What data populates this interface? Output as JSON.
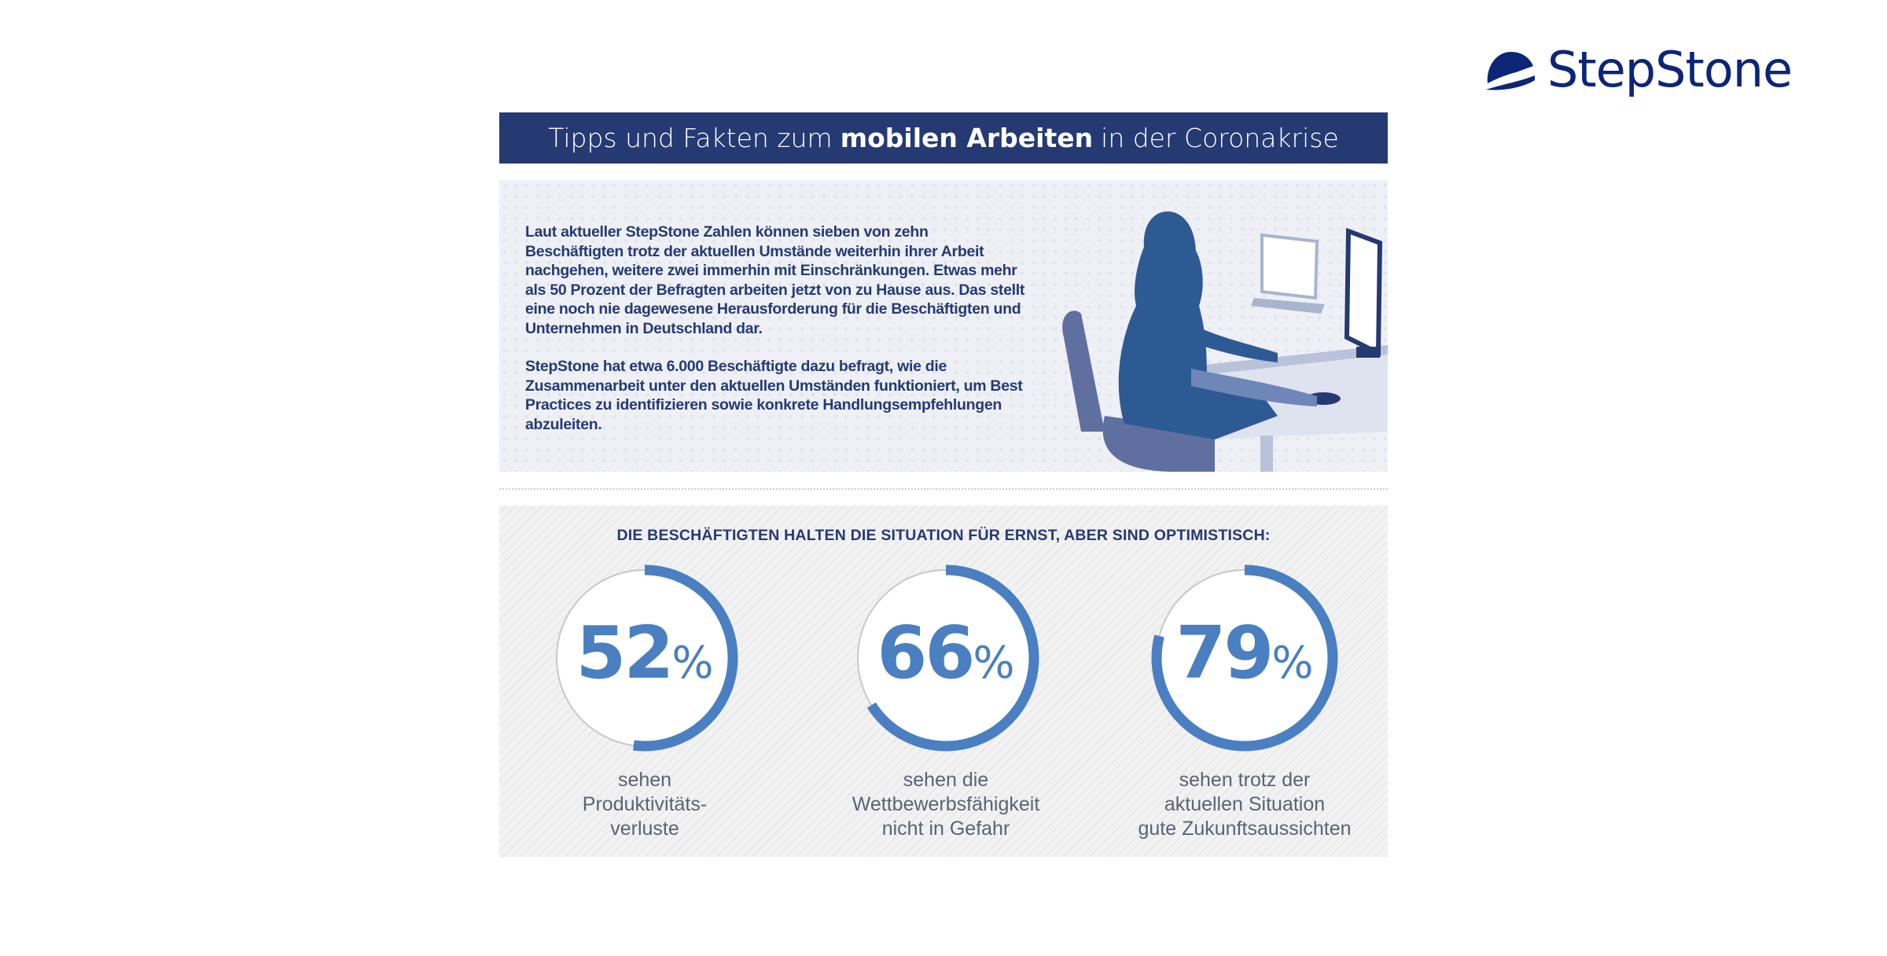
{
  "brand": {
    "name": "StepStone",
    "color": "#0c2577"
  },
  "header": {
    "pre": "Tipps und Fakten zum",
    "bold": "mobilen Arbeiten",
    "post": "in der Coronakrise"
  },
  "intro": {
    "paragraphs": [
      "Laut aktueller StepStone Zahlen können sieben von zehn Beschäftigten trotz der aktuellen Umstände weiterhin ihrer Arbeit nachgehen, weitere zwei immerhin mit Einschränkungen. Etwas mehr als 50 Prozent der Befragten arbeiten jetzt von zu Hause aus. Das stellt eine noch nie dagewesene Herausforderung für die Beschäftigten und Unternehmen in Deutschland dar.",
      "StepStone hat etwa 6.000 Beschäftigte dazu befragt, wie die Zusammenarbeit unter den aktuellen Umständen funktioniert, um Best Practices zu identifizieren sowie konkrete Handlungsempfehlungen abzuleiten."
    ]
  },
  "stats": {
    "title": "DIE BESCHÄFTIGTEN HALTEN DIE SITUATION FÜR ERNST, ABER SIND OPTIMISTISCH:",
    "accent": "#4a7fc1",
    "items": [
      {
        "value": 52,
        "number": "52",
        "unit": "%",
        "label": [
          "sehen",
          "Produktivitäts-",
          "verluste"
        ]
      },
      {
        "value": 66,
        "number": "66",
        "unit": "%",
        "label": [
          "sehen die",
          "Wettbewerbsfähigkeit",
          "nicht in Gefahr"
        ]
      },
      {
        "value": 79,
        "number": "79",
        "unit": "%",
        "label": [
          "sehen trotz der",
          "aktuellen Situation",
          "gute Zukunftsaussichten"
        ]
      }
    ]
  }
}
